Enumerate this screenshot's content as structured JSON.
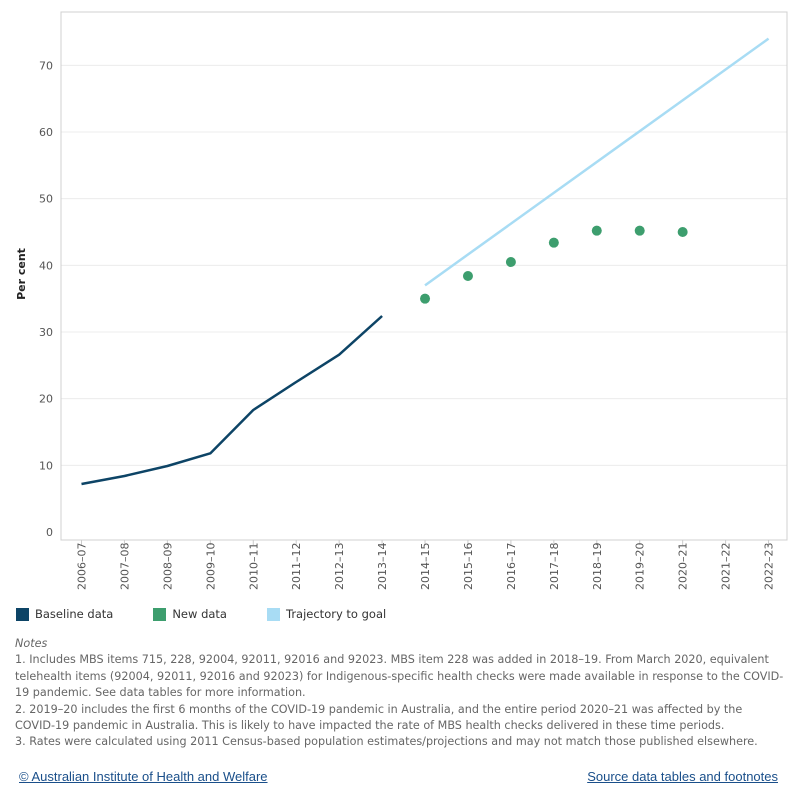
{
  "chart_data": {
    "type": "line",
    "ylabel": "Per cent",
    "xlabel": "",
    "ylim": [
      0,
      78
    ],
    "yticks": [
      0,
      10,
      20,
      30,
      40,
      50,
      60,
      70
    ],
    "categories": [
      "2006–07",
      "2007–08",
      "2008–09",
      "2009–10",
      "2010–11",
      "2011–12",
      "2012–13",
      "2013–14",
      "2014–15",
      "2015–16",
      "2016–17",
      "2017–18",
      "2018–19",
      "2019–20",
      "2020–21",
      "2021–22",
      "2022–23"
    ],
    "grid": "horizontal",
    "series": [
      {
        "name": "Baseline data",
        "type": "line",
        "color": "#0d4466",
        "x": [
          "2006–07",
          "2007–08",
          "2008–09",
          "2009–10",
          "2010–11",
          "2011–12",
          "2012–13",
          "2013–14"
        ],
        "values": [
          7.2,
          8.4,
          9.9,
          11.8,
          18.3,
          22.5,
          26.6,
          32.4
        ]
      },
      {
        "name": "New data",
        "type": "scatter",
        "color": "#3d9e6e",
        "x": [
          "2014–15",
          "2015–16",
          "2016–17",
          "2017–18",
          "2018–19",
          "2019–20",
          "2020–21"
        ],
        "values": [
          35.0,
          38.4,
          40.5,
          43.4,
          45.2,
          45.2,
          45.0
        ]
      },
      {
        "name": "Trajectory to goal",
        "type": "line",
        "color": "#a8dcf4",
        "x": [
          "2014–15",
          "2022–23"
        ],
        "values": [
          37.0,
          74.0
        ]
      }
    ]
  },
  "legend": [
    {
      "label": "Baseline data",
      "color": "#0d4466"
    },
    {
      "label": "New data",
      "color": "#3d9e6e"
    },
    {
      "label": "Trajectory to goal",
      "color": "#a8dcf4"
    }
  ],
  "notes": {
    "title": "Notes",
    "items": [
      "1. Includes MBS items 715, 228, 92004, 92011, 92016 and 92023. MBS item 228 was added in 2018–19. From March 2020, equivalent telehealth items (92004, 92011, 92016 and 92023) for Indigenous-specific health checks were made available in response to the COVID-19 pandemic. See data tables for more information.",
      "2. 2019–20 includes the first 6 months of the COVID-19 pandemic in Australia, and the entire period 2020–21 was affected by the COVID-19 pandemic in Australia. This is likely to have impacted the rate of MBS health checks delivered in these time periods.",
      "3. Rates were calculated using 2011 Census-based population estimates/projections and may not match those published elsewhere."
    ]
  },
  "footer": {
    "left_link": "© Australian Institute of Health and Welfare",
    "right_link": "Source data tables and footnotes"
  }
}
